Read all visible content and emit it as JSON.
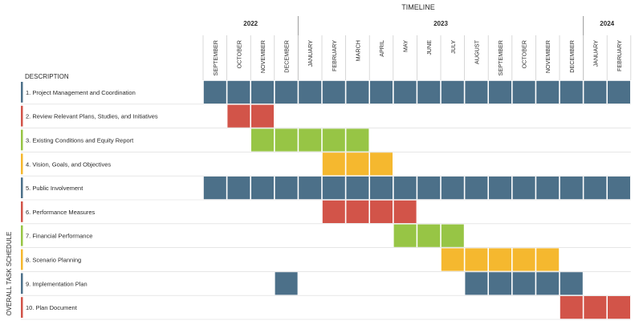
{
  "chart_data": {
    "type": "gantt",
    "timeline_label": "TIMELINE",
    "description_header": "DESCRIPTION",
    "side_label": "OVERALL TASK SCHEDULE",
    "years": [
      {
        "label": "2022",
        "start_month": 0,
        "end_month": 4
      },
      {
        "label": "2023",
        "start_month": 4,
        "end_month": 16
      },
      {
        "label": "2024",
        "start_month": 16,
        "end_month": 18
      }
    ],
    "months": [
      "SEPTEMBER",
      "OCTOBER",
      "NOVEMBER",
      "DECEMBER",
      "JANUARY",
      "FEBRUARY",
      "MARCH",
      "APRIL",
      "MAY",
      "JUNE",
      "JULY",
      "AUGUST",
      "SEPTEMBER",
      "OCTOBER",
      "NOVEMBER",
      "DECEMBER",
      "JANUARY",
      "FEBRUARY"
    ],
    "tasks": [
      {
        "label": "1. Project Management and Coordination",
        "color": "#4c7089",
        "bars": [
          [
            0,
            17
          ]
        ]
      },
      {
        "label": "2. Review Relevant Plans, Studies, and Initiatives",
        "color": "#d25449",
        "bars": [
          [
            1,
            2
          ]
        ]
      },
      {
        "label": "3. Existing Conditions and Equity Report",
        "color": "#97c545",
        "bars": [
          [
            2,
            6
          ]
        ]
      },
      {
        "label": "4. Vision, Goals, and Objectives",
        "color": "#f5b82f",
        "bars": [
          [
            5,
            7
          ]
        ]
      },
      {
        "label": "5. Public Involvement",
        "color": "#4c7089",
        "bars": [
          [
            0,
            17
          ]
        ]
      },
      {
        "label": "6. Performance Measures",
        "color": "#d25449",
        "bars": [
          [
            5,
            8
          ]
        ]
      },
      {
        "label": "7. Financial Performance",
        "color": "#97c545",
        "bars": [
          [
            8,
            10
          ]
        ]
      },
      {
        "label": "8. Scenario Planning",
        "color": "#f5b82f",
        "bars": [
          [
            10,
            14
          ]
        ]
      },
      {
        "label": "9. Implementation Plan",
        "color": "#4c7089",
        "bars": [
          [
            3,
            3
          ],
          [
            11,
            15
          ]
        ]
      },
      {
        "label": "10. Plan Document",
        "color": "#d25449",
        "bars": [
          [
            15,
            17
          ]
        ]
      }
    ]
  }
}
